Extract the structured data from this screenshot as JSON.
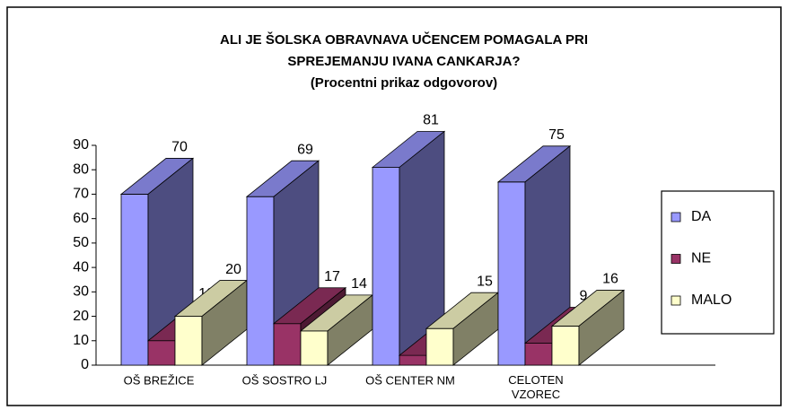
{
  "chart_data": {
    "type": "bar3d",
    "title": [
      "ALI JE ŠOLSKA OBRAVNAVA UČENCEM POMAGALA PRI",
      "SPREJEMANJU IVANA CANKARJA?"
    ],
    "subtitle": "(Procentni prikaz odgovorov)",
    "categories": [
      "OŠ BREŽICE",
      "OŠ SOSTRO LJ",
      "OŠ CENTER NM",
      "CELOTEN VZOREC"
    ],
    "series": [
      {
        "name": "DA",
        "color": "#9999ff",
        "values": [
          70,
          69,
          81,
          75
        ]
      },
      {
        "name": "NE",
        "color": "#993366",
        "values": [
          10,
          17,
          4,
          9
        ]
      },
      {
        "name": "MALO",
        "color": "#ffffcc",
        "values": [
          20,
          14,
          15,
          16
        ]
      }
    ],
    "ylim": [
      0,
      90
    ],
    "yticks": [
      0,
      10,
      20,
      30,
      40,
      50,
      60,
      70,
      80,
      90
    ],
    "legend": "right"
  }
}
